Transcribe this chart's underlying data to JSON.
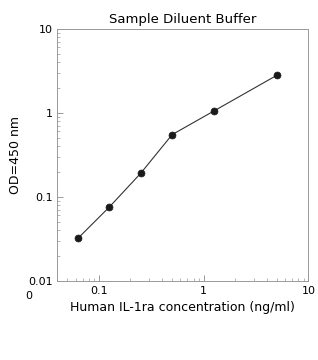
{
  "title": "Sample Diluent Buffer",
  "xlabel": "Human IL-1ra concentration (ng/ml)",
  "ylabel": "OD=450 nm",
  "x_data": [
    0.063,
    0.125,
    0.25,
    0.5,
    1.25,
    5.0
  ],
  "y_data": [
    0.032,
    0.075,
    0.19,
    0.55,
    1.05,
    2.8
  ],
  "xlim": [
    0.04,
    10
  ],
  "ylim": [
    0.01,
    10
  ],
  "line_color": "#333333",
  "marker_color": "#1a1a1a",
  "marker_size": 5,
  "background_color": "#ffffff",
  "title_fontsize": 9.5,
  "label_fontsize": 9,
  "tick_fontsize": 8,
  "x_ticks": [
    0.1,
    1,
    10
  ],
  "x_tick_labels": [
    "0.1",
    "1",
    "10"
  ],
  "y_ticks": [
    0.01,
    0.1,
    1,
    10
  ],
  "y_tick_labels": [
    "0.01",
    "0.1",
    "1",
    "10"
  ]
}
